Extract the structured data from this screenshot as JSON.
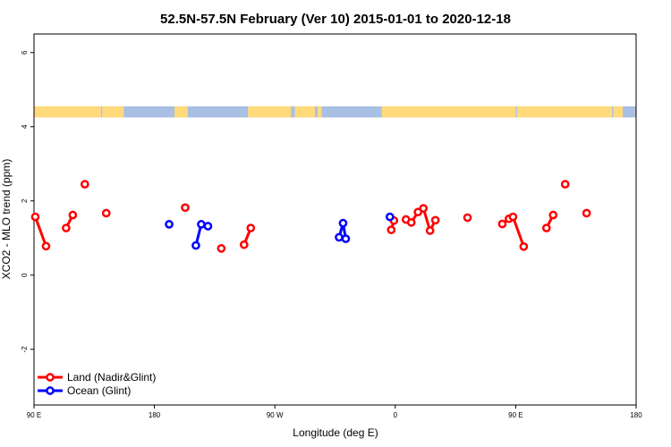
{
  "chart_data": {
    "type": "line",
    "title": "52.5N-57.5N February (Ver 10)   2015-01-01 to 2020-12-18",
    "xlabel": "Longitude (deg E)",
    "ylabel": "XCO2 - MLO trend (ppm)",
    "xlim": [
      90,
      540
    ],
    "ylim": [
      -3.5,
      6.5
    ],
    "x_ticks": [
      {
        "value": 90,
        "label": "90 E"
      },
      {
        "value": 180,
        "label": "180"
      },
      {
        "value": 270,
        "label": "90 W"
      },
      {
        "value": 360,
        "label": "0"
      },
      {
        "value": 450,
        "label": "90 E"
      },
      {
        "value": 540,
        "label": "180"
      }
    ],
    "y_ticks": [
      {
        "value": -2,
        "label": "-2"
      },
      {
        "value": 0,
        "label": "0"
      },
      {
        "value": 2,
        "label": "2"
      },
      {
        "value": 4,
        "label": "4"
      },
      {
        "value": 6,
        "label": "6"
      }
    ],
    "land_mask": {
      "y_range": [
        4.25,
        4.55
      ],
      "land_color": "#FFD97A",
      "ocean_color": "#A9BFE3",
      "segments": [
        {
          "type": "land",
          "from": 90,
          "to": 140
        },
        {
          "type": "ocean",
          "from": 140,
          "to": 141
        },
        {
          "type": "land",
          "from": 141,
          "to": 157
        },
        {
          "type": "ocean",
          "from": 157,
          "to": 195
        },
        {
          "type": "land",
          "from": 195,
          "to": 205
        },
        {
          "type": "ocean",
          "from": 205,
          "to": 250
        },
        {
          "type": "land",
          "from": 250,
          "to": 282
        },
        {
          "type": "ocean",
          "from": 282,
          "to": 285
        },
        {
          "type": "land",
          "from": 285,
          "to": 300
        },
        {
          "type": "ocean",
          "from": 300,
          "to": 302
        },
        {
          "type": "land",
          "from": 302,
          "to": 305
        },
        {
          "type": "ocean",
          "from": 305,
          "to": 350
        },
        {
          "type": "land",
          "from": 350,
          "to": 450
        },
        {
          "type": "ocean",
          "from": 450,
          "to": 451
        },
        {
          "type": "land",
          "from": 451,
          "to": 522
        },
        {
          "type": "ocean",
          "from": 522,
          "to": 523
        },
        {
          "type": "land",
          "from": 523,
          "to": 530
        },
        {
          "type": "ocean",
          "from": 530,
          "to": 540
        }
      ]
    },
    "series": [
      {
        "name": "Land (Nadir&Glint)",
        "color": "#FF0000",
        "segments": [
          [
            [
              91,
              1.57
            ],
            [
              99,
              0.78
            ]
          ],
          [
            [
              114,
              1.27
            ],
            [
              119,
              1.62
            ]
          ],
          [
            [
              128,
              2.45
            ]
          ],
          [
            [
              144,
              1.67
            ]
          ],
          [
            [
              203,
              1.82
            ]
          ],
          [
            [
              230,
              0.72
            ]
          ],
          [
            [
              247,
              0.82
            ],
            [
              252,
              1.27
            ]
          ],
          [
            [
              357,
              1.22
            ],
            [
              359,
              1.47
            ]
          ],
          [
            [
              368,
              1.5
            ],
            [
              372,
              1.42
            ],
            [
              377,
              1.7
            ],
            [
              381,
              1.8
            ],
            [
              386,
              1.2
            ],
            [
              390,
              1.48
            ]
          ],
          [
            [
              414,
              1.55
            ]
          ],
          [
            [
              440,
              1.38
            ],
            [
              445,
              1.52
            ],
            [
              448,
              1.57
            ],
            [
              456,
              0.77
            ]
          ],
          [
            [
              473,
              1.27
            ],
            [
              478,
              1.62
            ]
          ],
          [
            [
              487,
              2.45
            ]
          ],
          [
            [
              503,
              1.67
            ]
          ]
        ]
      },
      {
        "name": "Ocean (Glint)",
        "color": "#0000FF",
        "segments": [
          [
            [
              191,
              1.37
            ]
          ],
          [
            [
              211,
              0.8
            ],
            [
              215,
              1.37
            ],
            [
              220,
              1.32
            ]
          ],
          [
            [
              318,
              1.02
            ],
            [
              321,
              1.4
            ],
            [
              323,
              0.98
            ]
          ],
          [
            [
              356,
              1.57
            ]
          ]
        ]
      }
    ],
    "legend": {
      "position": "bottom-left",
      "entries": [
        {
          "label": "Land (Nadir&Glint)",
          "color": "#FF0000"
        },
        {
          "label": "Ocean (Glint)",
          "color": "#0000FF"
        }
      ]
    }
  }
}
